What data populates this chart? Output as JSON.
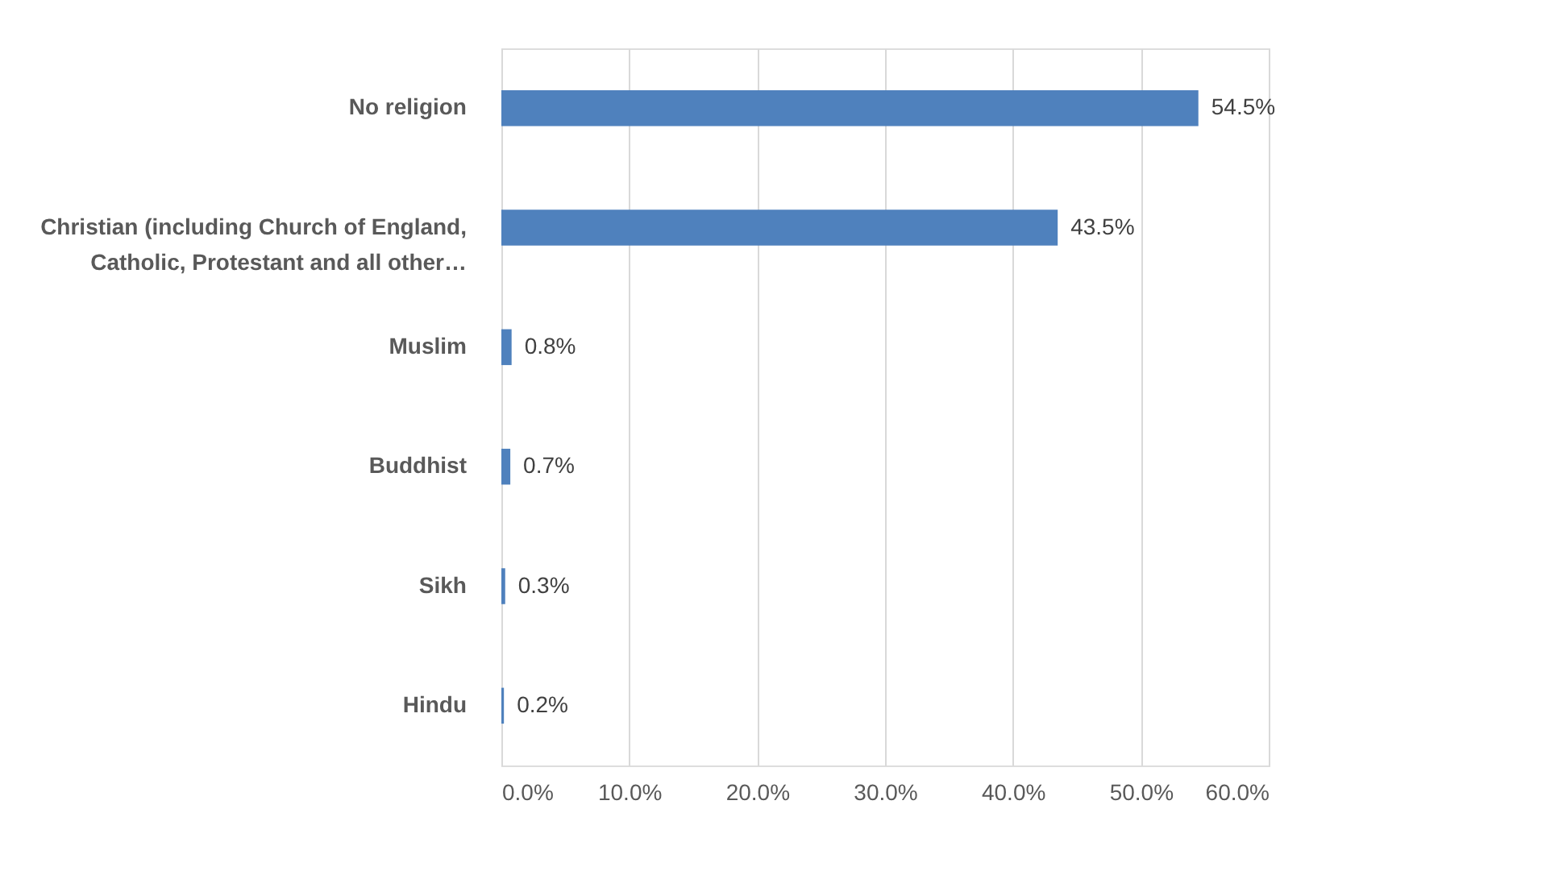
{
  "chart_data": {
    "type": "bar",
    "orientation": "horizontal",
    "categories": [
      "No religion",
      "Christian (including Church of England,\nCatholic, Protestant and all other…",
      "Muslim",
      "Buddhist",
      "Sikh",
      "Hindu"
    ],
    "values": [
      54.5,
      43.5,
      0.8,
      0.7,
      0.3,
      0.2
    ],
    "value_labels": [
      "54.5%",
      "43.5%",
      "0.8%",
      "0.7%",
      "0.3%",
      "0.2%"
    ],
    "color": "#4f81bd",
    "xlim": [
      0,
      60
    ],
    "xticks": [
      {
        "value": 0,
        "label": "0.0%"
      },
      {
        "value": 10,
        "label": "10.0%"
      },
      {
        "value": 20,
        "label": "20.0%"
      },
      {
        "value": 30,
        "label": "30.0%"
      },
      {
        "value": 40,
        "label": "40.0%"
      },
      {
        "value": 50,
        "label": "50.0%"
      },
      {
        "value": 60,
        "label": "60.0%"
      }
    ],
    "grid": "x"
  }
}
